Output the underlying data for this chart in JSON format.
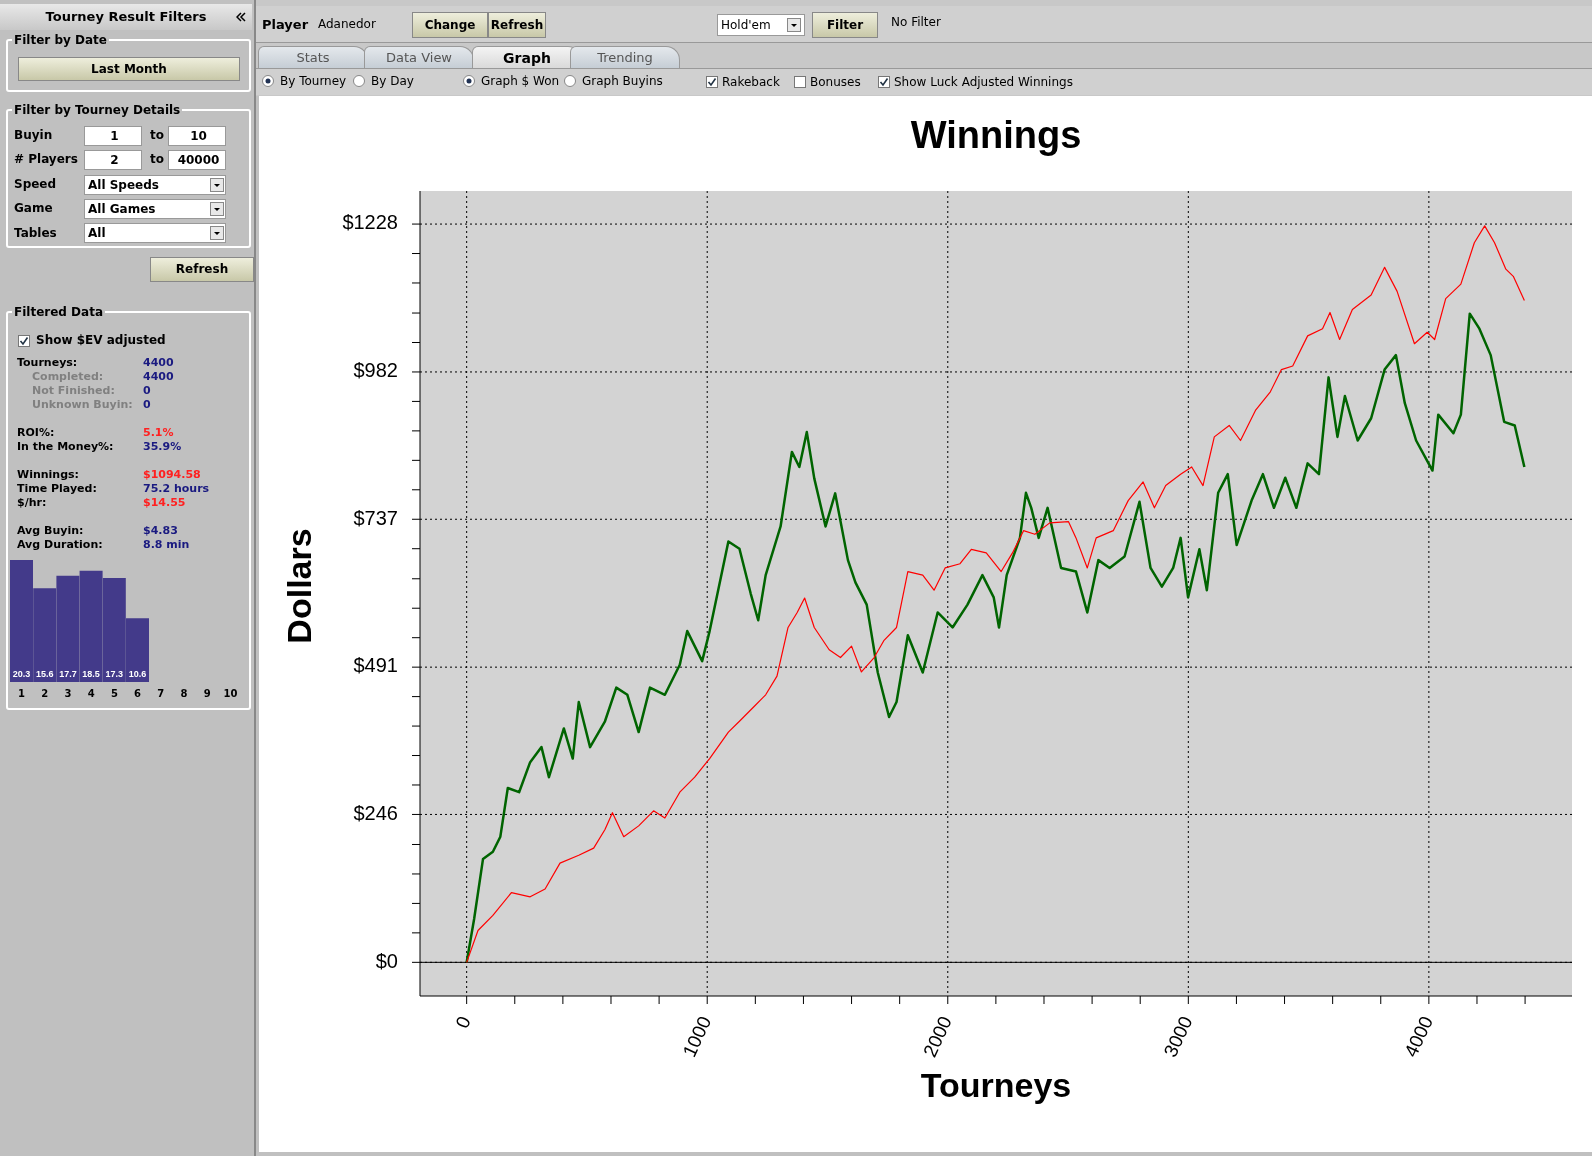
{
  "chart_data": [
    {
      "type": "line",
      "title": "Winnings",
      "xlabel": "Tourneys",
      "ylabel": "Dollars",
      "xlim": [
        -194,
        4595
      ],
      "ylim": [
        -56,
        1283
      ],
      "xticks": [
        0,
        {
          "value": 200,
          "label": null
        },
        {
          "value": 400,
          "label": null
        },
        {
          "value": 600,
          "label": null
        },
        {
          "value": 800,
          "label": null
        },
        1000,
        {
          "value": 1200,
          "label": null
        },
        {
          "value": 1400,
          "label": null
        },
        {
          "value": 1600,
          "label": null
        },
        {
          "value": 1800,
          "label": null
        },
        2000,
        {
          "value": 2200,
          "label": null
        },
        {
          "value": 2400,
          "label": null
        },
        {
          "value": 2600,
          "label": null
        },
        {
          "value": 2800,
          "label": null
        },
        3000,
        {
          "value": 3200,
          "label": null
        },
        {
          "value": 3400,
          "label": null
        },
        {
          "value": 3600,
          "label": null
        },
        {
          "value": 3800,
          "label": null
        },
        4000,
        {
          "value": 4200,
          "label": null
        },
        {
          "value": 4400,
          "label": null
        }
      ],
      "yticks": [
        {
          "value": 0,
          "label": "$0"
        },
        {
          "value": 49,
          "label": null
        },
        {
          "value": 98,
          "label": null
        },
        {
          "value": 147,
          "label": null
        },
        {
          "value": 196,
          "label": null
        },
        {
          "value": 246,
          "label": "$246"
        },
        {
          "value": 295,
          "label": null
        },
        {
          "value": 344,
          "label": null
        },
        {
          "value": 393,
          "label": null
        },
        {
          "value": 442,
          "label": null
        },
        {
          "value": 491,
          "label": "$491"
        },
        {
          "value": 540,
          "label": null
        },
        {
          "value": 589,
          "label": null
        },
        {
          "value": 638,
          "label": null
        },
        {
          "value": 688,
          "label": null
        },
        {
          "value": 737,
          "label": "$737"
        },
        {
          "value": 786,
          "label": null
        },
        {
          "value": 835,
          "label": null
        },
        {
          "value": 884,
          "label": null
        },
        {
          "value": 933,
          "label": null
        },
        {
          "value": 982,
          "label": "$982"
        },
        {
          "value": 1031,
          "label": null
        },
        {
          "value": 1080,
          "label": null
        },
        {
          "value": 1130,
          "label": null
        },
        {
          "value": 1179,
          "label": null
        },
        {
          "value": 1228,
          "label": "$1228"
        }
      ],
      "grid": true,
      "marker": "none",
      "line_style": "solid",
      "ref_lines": [
        {
          "axis": "y",
          "value": 0,
          "color": "#000000"
        }
      ],
      "series": [
        {
          "color": "#006400",
          "x": [
            0,
            31,
            68,
            109,
            140,
            171,
            218,
            264,
            311,
            342,
            404,
            441,
            466,
            513,
            575,
            622,
            668,
            715,
            762,
            824,
            886,
            917,
            979,
            1010,
            1088,
            1134,
            1181,
            1212,
            1243,
            1305,
            1352,
            1383,
            1414,
            1445,
            1492,
            1532,
            1585,
            1616,
            1663,
            1709,
            1756,
            1787,
            1834,
            1896,
            1958,
            2020,
            2082,
            2144,
            2191,
            2213,
            2245,
            2300,
            2325,
            2347,
            2378,
            2415,
            2471,
            2533,
            2580,
            2626,
            2673,
            2735,
            2797,
            2843,
            2890,
            2937,
            2968,
            2999,
            3046,
            3077,
            3124,
            3164,
            3201,
            3263,
            3310,
            3356,
            3403,
            3449,
            3496,
            3543,
            3583,
            3620,
            3651,
            3704,
            3760,
            3816,
            3863,
            3900,
            3947,
            4015,
            4039,
            4102,
            4133,
            4170,
            4210,
            4257,
            4313,
            4357,
            4397
          ],
          "values": [
            0,
            72,
            172,
            184,
            209,
            290,
            283,
            333,
            358,
            308,
            389,
            339,
            433,
            358,
            401,
            457,
            445,
            383,
            457,
            445,
            495,
            551,
            501,
            551,
            700,
            688,
            613,
            569,
            644,
            725,
            849,
            824,
            882,
            805,
            725,
            780,
            669,
            632,
            595,
            482,
            408,
            433,
            544,
            482,
            582,
            557,
            595,
            644,
            607,
            557,
            644,
            706,
            781,
            756,
            706,
            756,
            656,
            650,
            582,
            669,
            656,
            675,
            766,
            656,
            625,
            656,
            706,
            607,
            687,
            619,
            781,
            812,
            694,
            768,
            812,
            756,
            806,
            756,
            830,
            812,
            973,
            874,
            942,
            868,
            905,
            986,
            1010,
            930,
            868,
            818,
            911,
            880,
            911,
            1079,
            1054,
            1010,
            899,
            893,
            824
          ]
        },
        {
          "color": "#ff0000",
          "x": [
            0,
            47,
            109,
            186,
            264,
            326,
            388,
            466,
            528,
            575,
            606,
            653,
            715,
            777,
            824,
            886,
            948,
            1010,
            1088,
            1134,
            1196,
            1243,
            1290,
            1336,
            1374,
            1405,
            1445,
            1507,
            1554,
            1600,
            1641,
            1694,
            1734,
            1787,
            1834,
            1896,
            1943,
            1989,
            2051,
            2098,
            2160,
            2222,
            2269,
            2315,
            2362,
            2424,
            2502,
            2533,
            2580,
            2617,
            2688,
            2750,
            2812,
            2859,
            2906,
            2968,
            3014,
            3061,
            3108,
            3170,
            3217,
            3279,
            3341,
            3387,
            3434,
            3496,
            3558,
            3589,
            3629,
            3682,
            3760,
            3816,
            3868,
            3940,
            3993,
            4024,
            4070,
            4133,
            4189,
            4232,
            4273,
            4320,
            4351,
            4397
          ],
          "values": [
            0,
            53,
            78,
            116,
            109,
            122,
            165,
            178,
            190,
            221,
            249,
            209,
            227,
            252,
            240,
            283,
            308,
            339,
            383,
            401,
            426,
            445,
            476,
            557,
            582,
            606,
            557,
            520,
            507,
            526,
            483,
            507,
            535,
            557,
            650,
            644,
            619,
            656,
            663,
            687,
            681,
            650,
            681,
            718,
            712,
            731,
            733,
            706,
            656,
            706,
            718,
            768,
            799,
            756,
            793,
            812,
            824,
            793,
            874,
            893,
            868,
            918,
            949,
            986,
            992,
            1042,
            1054,
            1081,
            1036,
            1086,
            1110,
            1156,
            1116,
            1029,
            1048,
            1036,
            1104,
            1128,
            1197,
            1225,
            1197,
            1153,
            1141,
            1101
          ]
        }
      ]
    },
    {
      "type": "other",
      "title": "Tourney Result Filters",
      "annotations": [
        "Filter by Date",
        "Last Month",
        "Filter by Tourney Details",
        "Buyin",
        "1",
        "to",
        "10",
        "# Players",
        "2",
        "to",
        "40000",
        "Speed",
        "All Speeds",
        "Game",
        "All Games",
        "Tables",
        "All",
        "Refresh",
        "Filtered Data",
        "Show $EV adjusted",
        "Tourneys:",
        "4400",
        "Completed:",
        "4400",
        "Not Finished:",
        "0",
        "Unknown Buyin:",
        "0",
        "ROI%:",
        "5.1%",
        "In the Money%:",
        "35.9%",
        "Winnings:",
        "$1094.58",
        "Time Played:",
        "75.2 hours",
        "$/hr:",
        "$14.55",
        "Avg Buyin:",
        "$4.83",
        "Avg Duration:",
        "8.8 min"
      ]
    },
    {
      "type": "bar",
      "categories": [
        "1",
        "2",
        "3",
        "4",
        "5",
        "6",
        "7",
        "8",
        "9",
        "10"
      ],
      "values": [
        20.3,
        15.6,
        17.7,
        18.5,
        17.3,
        10.6,
        null,
        null,
        null,
        null
      ],
      "color": "#433a8a",
      "data_labels": true
    },
    {
      "type": "other",
      "annotations": [
        "Player",
        "Adanedor",
        "Change",
        "Refresh",
        "Hold'em",
        "Filter",
        "No Filter",
        "Stats",
        "Data View",
        "Graph",
        "Trending",
        "By Tourney",
        "By Day",
        "Graph $ Won",
        "Graph Buyins",
        "Rakeback",
        "Bonuses",
        "Show Luck Adjusted Winnings"
      ]
    }
  ]
}
